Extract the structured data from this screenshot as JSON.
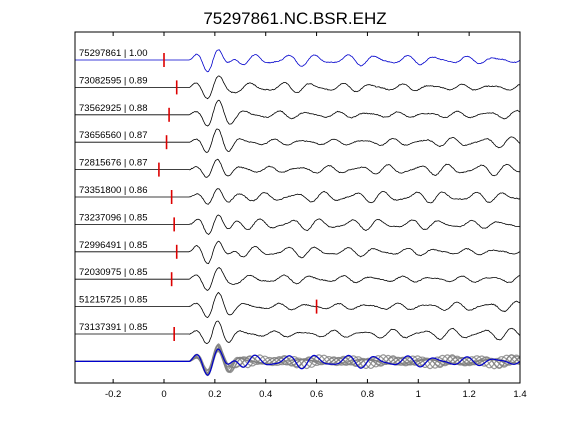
{
  "chart_data": {
    "type": "line",
    "title": "75297861.NC.BSR.EHZ",
    "xlabel": "",
    "ylabel": "",
    "xlim": [
      -0.35,
      1.4
    ],
    "x_ticks": [
      -0.2,
      0,
      0.2,
      0.4,
      0.6,
      0.8,
      1,
      1.2,
      1.4
    ],
    "x_tick_labels": [
      "-0.2",
      "0",
      "0.2",
      "0.4",
      "0.6",
      "0.8",
      "1",
      "1.2",
      "1.4"
    ],
    "grid": false,
    "colors": {
      "reference": "#0000cc",
      "trace": "#000000",
      "pick": "#dd0000",
      "overlay": "#808080"
    },
    "series": [
      {
        "name": "75297861",
        "coefficient": "1.00",
        "pick_time": 0.0
      },
      {
        "name": "73082595",
        "coefficient": "0.89",
        "pick_time": 0.05
      },
      {
        "name": "73562925",
        "coefficient": "0.88",
        "pick_time": 0.02
      },
      {
        "name": "73656560",
        "coefficient": "0.87",
        "pick_time": 0.01
      },
      {
        "name": "72815676",
        "coefficient": "0.87",
        "pick_time": -0.02
      },
      {
        "name": "73351800",
        "coefficient": "0.86",
        "pick_time": 0.03
      },
      {
        "name": "73237096",
        "coefficient": "0.85",
        "pick_time": 0.04
      },
      {
        "name": "72996491",
        "coefficient": "0.85",
        "pick_time": 0.05
      },
      {
        "name": "72030975",
        "coefficient": "0.85",
        "pick_time": 0.03
      },
      {
        "name": "51215725",
        "coefficient": "0.85",
        "pick_time": 0.6
      },
      {
        "name": "73137391",
        "coefficient": "0.85",
        "pick_time": 0.04
      }
    ],
    "stack": {
      "type": "overlay",
      "label": ""
    }
  }
}
